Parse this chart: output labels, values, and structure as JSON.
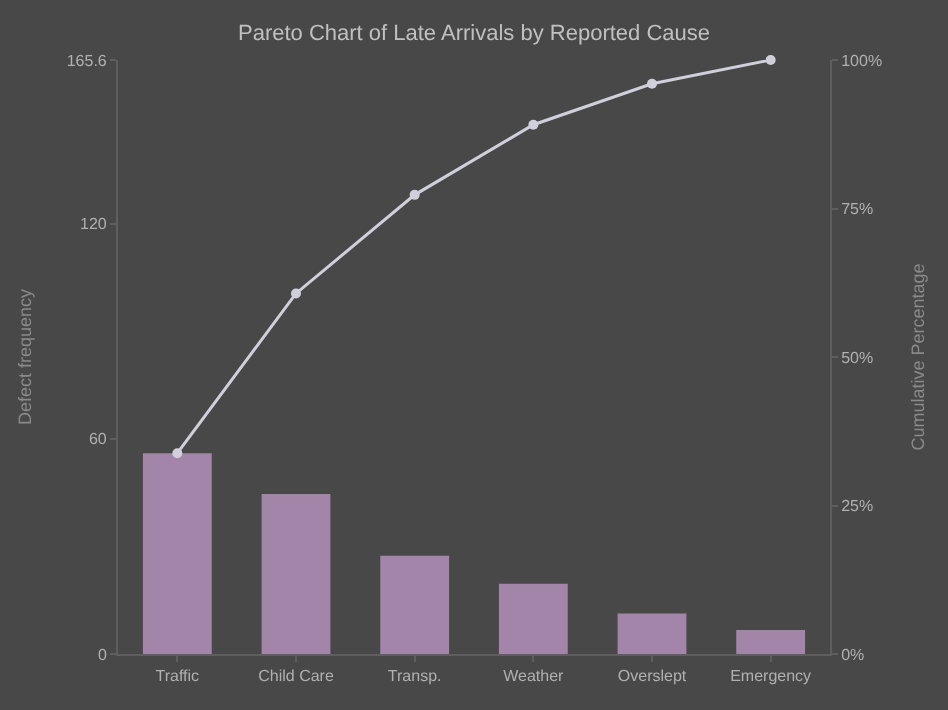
{
  "chart_data": {
    "type": "bar",
    "title": "Pareto Chart of Late Arrivals by Reported Cause",
    "ylabel": "Defect frequency",
    "y2label": "Cumulative Percentage",
    "categories": [
      "Traffic",
      "Child Care",
      "Transp.",
      "Weather",
      "Overslept",
      "Emergency"
    ],
    "series": [
      {
        "color": "#a385a9",
        "values": [
          56,
          44.6,
          27.4,
          19.6,
          11.3,
          6.7
        ]
      },
      {
        "type": "line",
        "axis": "y2",
        "color": "#d0d0dc",
        "marker": "circle",
        "values": [
          33.8,
          60.7,
          77.3,
          89.1,
          96.0,
          100
        ]
      }
    ],
    "ylim": [
      0,
      165.6
    ],
    "yticks": [
      0,
      60,
      120,
      165.6
    ],
    "y2lim": [
      0,
      100
    ],
    "y2ticks": [
      {
        "value": 0,
        "label": "0%"
      },
      {
        "value": 25,
        "label": "25%"
      },
      {
        "value": 50,
        "label": "50%"
      },
      {
        "value": 75,
        "label": "75%"
      },
      {
        "value": 100,
        "label": "100%"
      }
    ],
    "grid": false
  }
}
